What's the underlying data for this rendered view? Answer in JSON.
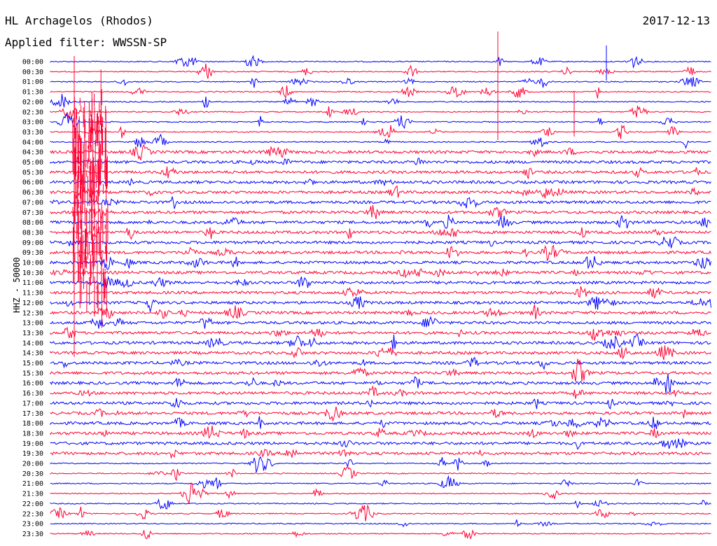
{
  "header": {
    "station": "HL Archagelos (Rhodos)",
    "date": "2017-12-13",
    "filter": "Applied filter: WWSSN-SP"
  },
  "chart_data": {
    "type": "line",
    "title": "HL Archagelos (Rhodos)",
    "ylabel": "HHZ - 50000",
    "rows": [
      "00:00",
      "00:30",
      "01:00",
      "01:30",
      "02:00",
      "02:30",
      "03:00",
      "03:30",
      "04:00",
      "04:30",
      "05:00",
      "05:30",
      "06:00",
      "06:30",
      "07:00",
      "07:30",
      "08:00",
      "08:30",
      "09:00",
      "09:30",
      "10:00",
      "10:30",
      "11:00",
      "11:30",
      "12:00",
      "12:30",
      "13:00",
      "13:30",
      "14:00",
      "14:30",
      "15:00",
      "15:30",
      "16:00",
      "16:30",
      "17:00",
      "17:30",
      "18:00",
      "18:30",
      "19:00",
      "19:30",
      "20:00",
      "20:30",
      "21:00",
      "21:30",
      "22:00",
      "22:30",
      "23:00",
      "23:30"
    ],
    "colors": [
      "#0000ff",
      "#ff0033"
    ],
    "grid": false
  }
}
